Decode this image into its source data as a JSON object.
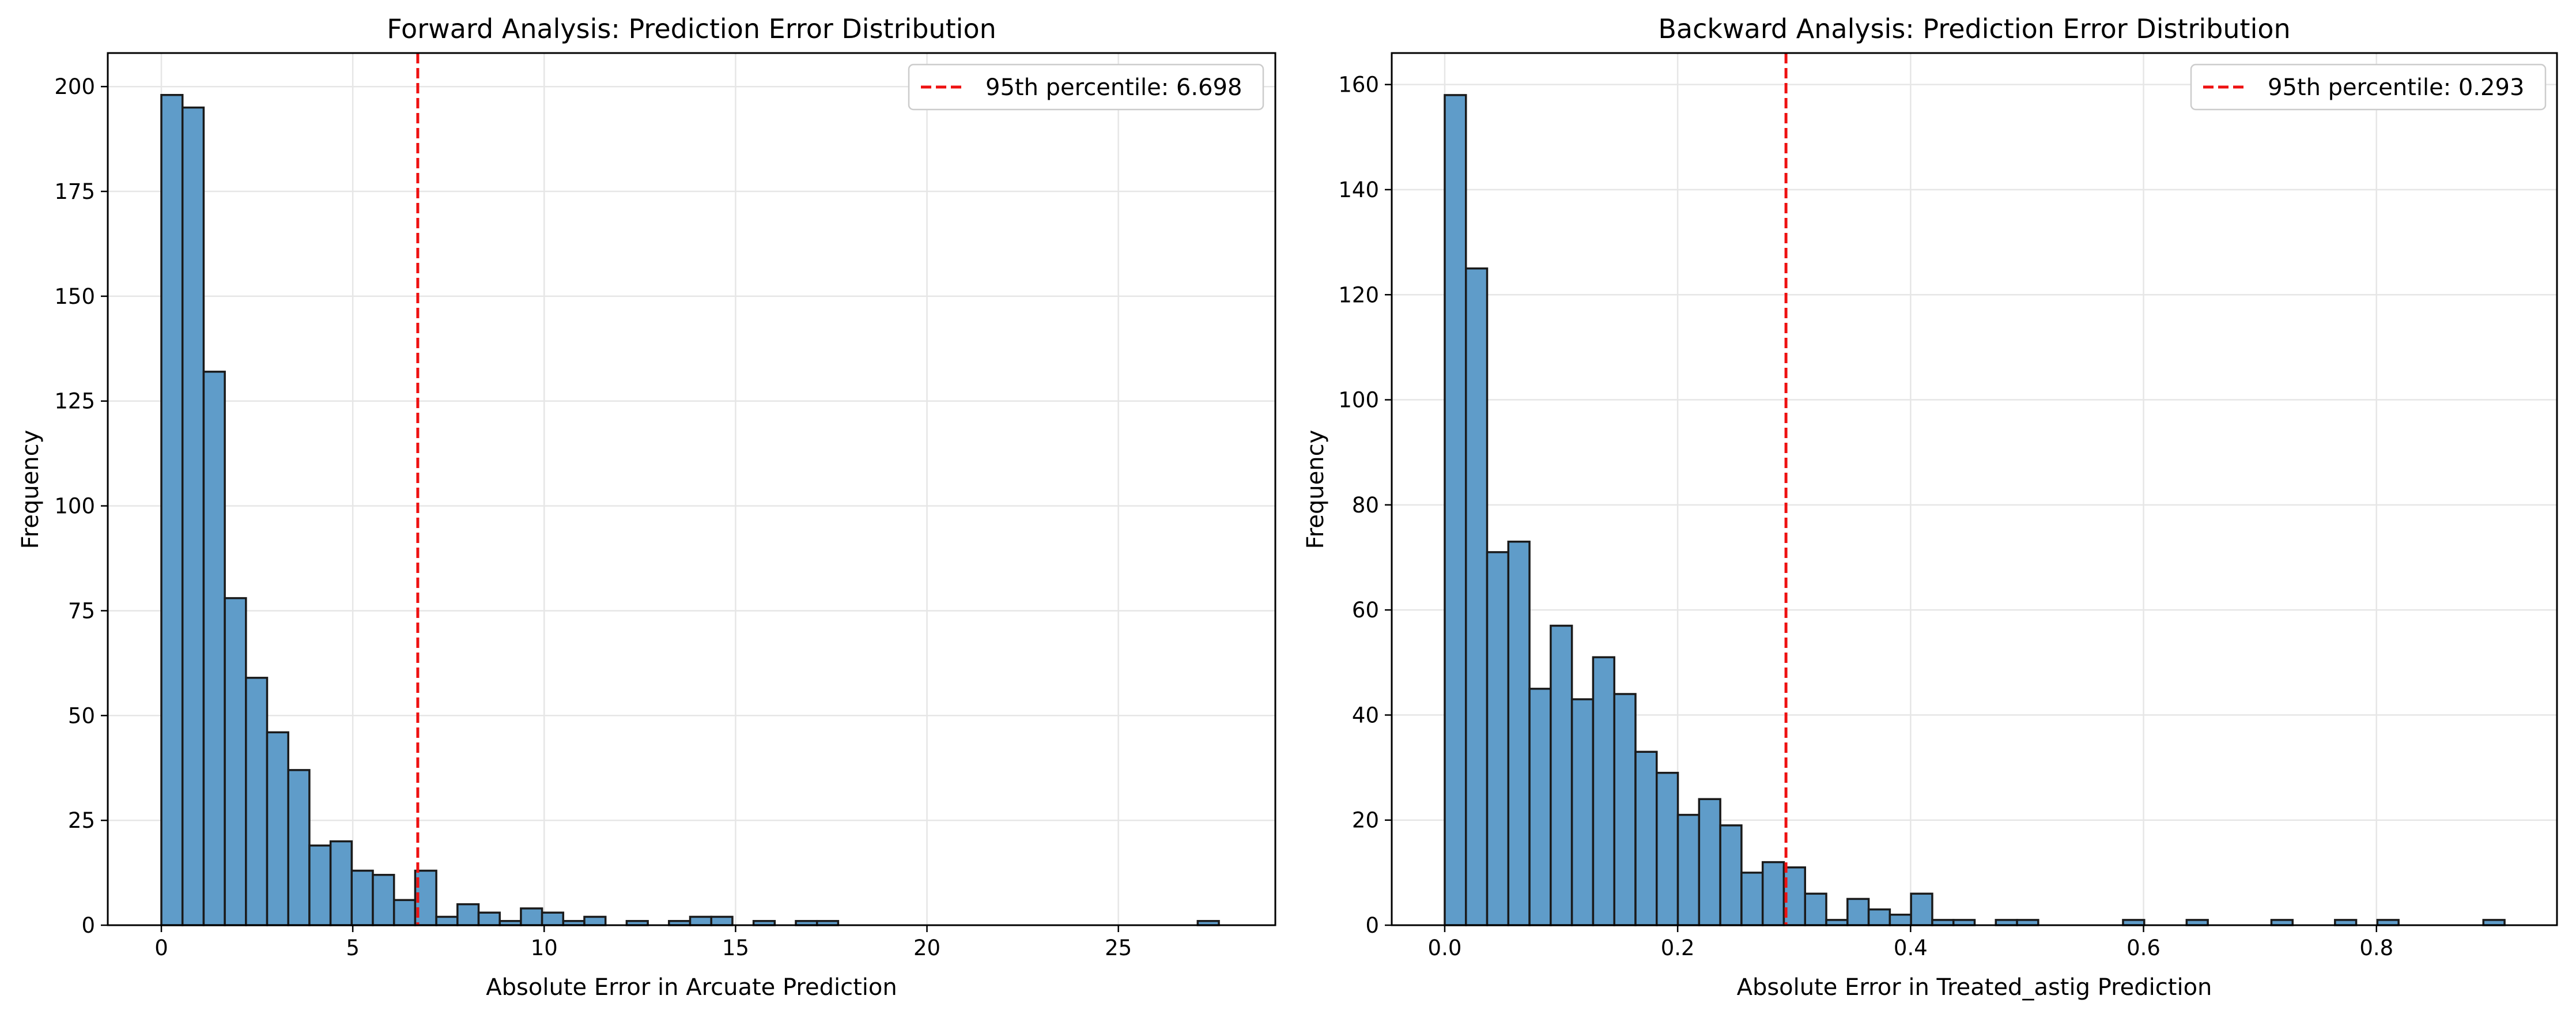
{
  "chart_data": [
    {
      "type": "bar",
      "title": "Forward Analysis: Prediction Error Distribution",
      "xlabel": "Absolute Error in Arcuate Prediction",
      "ylabel": "Frequency",
      "xlim": [
        -1.4,
        29.1
      ],
      "ylim": [
        0,
        208
      ],
      "xticks": [
        0,
        5,
        10,
        15,
        20,
        25
      ],
      "yticks": [
        0,
        25,
        50,
        75,
        100,
        125,
        150,
        175,
        200
      ],
      "grid": true,
      "bin_start": 0,
      "bin_width": 0.5525,
      "values": [
        198,
        195,
        132,
        78,
        59,
        46,
        37,
        19,
        20,
        13,
        12,
        6,
        13,
        2,
        5,
        3,
        1,
        4,
        3,
        1,
        2,
        0,
        1,
        0,
        1,
        2,
        2,
        0,
        1,
        0,
        1,
        1,
        0,
        0,
        0,
        0,
        0,
        0,
        0,
        0,
        0,
        0,
        0,
        0,
        0,
        0,
        0,
        0,
        0,
        1
      ],
      "percentile_line": {
        "x": 6.698,
        "label": "95th percentile: 6.698",
        "color": "#ee1111"
      },
      "bar_color": "#5f9cc9",
      "legend_position": "upper right"
    },
    {
      "type": "bar",
      "title": "Backward Analysis: Prediction Error Distribution",
      "xlabel": "Absolute Error in Treated_astig Prediction",
      "ylabel": "Frequency",
      "xlim": [
        -0.0455,
        0.955
      ],
      "ylim": [
        0,
        166
      ],
      "xticks": [
        0.0,
        0.2,
        0.4,
        0.6,
        0.8
      ],
      "yticks": [
        0,
        20,
        40,
        60,
        80,
        100,
        120,
        140,
        160
      ],
      "grid": true,
      "bin_start": 0,
      "bin_width": 0.0182,
      "values": [
        158,
        125,
        71,
        73,
        45,
        57,
        43,
        51,
        44,
        33,
        29,
        21,
        24,
        19,
        10,
        12,
        11,
        6,
        1,
        5,
        3,
        2,
        6,
        1,
        1,
        0,
        1,
        1,
        0,
        0,
        0,
        0,
        1,
        0,
        0,
        1,
        0,
        0,
        0,
        1,
        0,
        0,
        1,
        0,
        1,
        0,
        0,
        0,
        0,
        1
      ],
      "percentile_line": {
        "x": 0.293,
        "label": "95th percentile: 0.293",
        "color": "#ee1111"
      },
      "bar_color": "#5f9cc9",
      "legend_position": "upper right"
    }
  ]
}
